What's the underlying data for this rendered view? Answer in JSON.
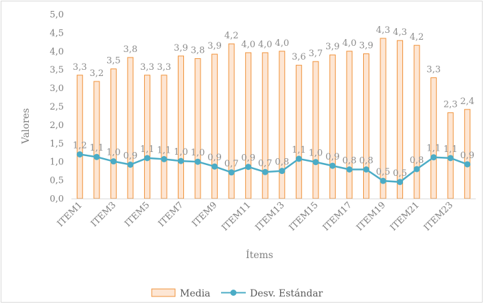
{
  "chart_data": {
    "type": "bar",
    "title": "",
    "xlabel": "Ítems",
    "ylabel": "Valores",
    "ylim": [
      0,
      5
    ],
    "ytick_step": 0.5,
    "ytick_labels": [
      "0,0",
      "0,5",
      "1,0",
      "1,5",
      "2,0",
      "2,5",
      "3,0",
      "3,5",
      "4,0",
      "4,5",
      "5,0"
    ],
    "categories": [
      "ITEM1",
      "ITEM2",
      "ITEM3",
      "ITEM4",
      "ITEM5",
      "ITEM6",
      "ITEM7",
      "ITEM8",
      "ITEM9",
      "ITEM10",
      "ITEM11",
      "ITEM12",
      "ITEM13",
      "ITEM14",
      "ITEM15",
      "ITEM16",
      "ITEM17",
      "ITEM18",
      "ITEM19",
      "ITEM20",
      "ITEM21",
      "ITEM22",
      "ITEM23",
      "ITEM24"
    ],
    "shown_tick_categories": [
      "ITEM1",
      "ITEM3",
      "ITEM5",
      "ITEM7",
      "ITEM9",
      "ITEM11",
      "ITEM13",
      "ITEM15",
      "ITEM17",
      "ITEM19",
      "ITEM21",
      "ITEM23"
    ],
    "legend_position": "bottom",
    "grid": false,
    "series": [
      {
        "name": "Media",
        "type": "bar",
        "color": "#f0923a",
        "fill": "#fde6d4",
        "values": [
          3.35,
          3.18,
          3.52,
          3.83,
          3.35,
          3.35,
          3.87,
          3.8,
          3.92,
          4.2,
          3.96,
          3.96,
          4.0,
          3.62,
          3.72,
          3.9,
          4.0,
          3.93,
          4.35,
          4.29,
          4.16,
          3.28,
          2.33,
          2.42
        ],
        "labels": [
          "3,3",
          "3,2",
          "3,5",
          "3,8",
          "3,3",
          "3,3",
          "3,9",
          "3,8",
          "3,9",
          "4,2",
          "4,0",
          "4,0",
          "4,0",
          "3,6",
          "3,7",
          "3,9",
          "4,0",
          "3,9",
          "4,3",
          "4,3",
          "4,2",
          "3,3",
          "2,3",
          "2,4"
        ]
      },
      {
        "name": "Desv. Estándar",
        "type": "line",
        "color": "#4bacc6",
        "values": [
          1.2,
          1.13,
          1.01,
          0.92,
          1.1,
          1.07,
          1.02,
          1.0,
          0.87,
          0.71,
          0.86,
          0.72,
          0.75,
          1.08,
          0.99,
          0.89,
          0.79,
          0.79,
          0.48,
          0.45,
          0.8,
          1.12,
          1.1,
          0.93
        ],
        "labels": [
          "1,2",
          "1,1",
          "1,0",
          "0,9",
          "1,1",
          "1,1",
          "1,0",
          "1,0",
          "0,9",
          "0,7",
          "0,9",
          "0,7",
          "0,8",
          "1,1",
          "1,0",
          "0,9",
          "0,8",
          "0,8",
          "0,5",
          "0,5",
          "0,8",
          "1,1",
          "1,1",
          "0,9"
        ]
      }
    ]
  }
}
